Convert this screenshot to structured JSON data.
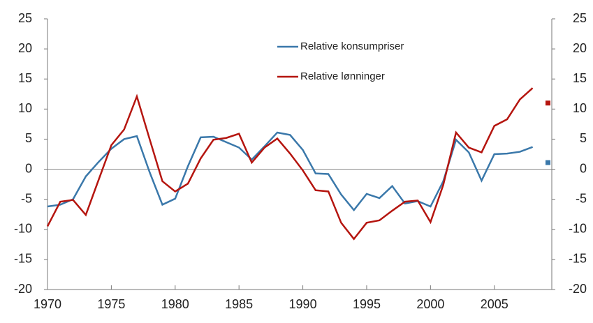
{
  "chart_data": {
    "type": "line",
    "x": [
      1970,
      1971,
      1972,
      1973,
      1974,
      1975,
      1976,
      1977,
      1978,
      1979,
      1980,
      1981,
      1982,
      1983,
      1984,
      1985,
      1986,
      1987,
      1988,
      1989,
      1990,
      1991,
      1992,
      1993,
      1994,
      1995,
      1996,
      1997,
      1998,
      1999,
      2000,
      2001,
      2002,
      2003,
      2004,
      2005,
      2006,
      2007,
      2008
    ],
    "series": [
      {
        "name": "Relative konsumpriser",
        "color": "#3a78aa",
        "values": [
          -6.2,
          -5.9,
          -5.0,
          -1.2,
          1.2,
          3.4,
          5.0,
          5.5,
          -0.5,
          -5.9,
          -4.9,
          0.5,
          5.3,
          5.4,
          4.5,
          3.6,
          1.6,
          3.8,
          6.1,
          5.7,
          3.2,
          -0.7,
          -0.8,
          -4.2,
          -6.8,
          -4.1,
          -4.8,
          -2.8,
          -5.7,
          -5.3,
          -6.2,
          -2.0,
          4.9,
          2.8,
          -1.9,
          2.5,
          2.6,
          2.9,
          3.7
        ],
        "marker": {
          "x": 2009.2,
          "value": 1.1
        }
      },
      {
        "name": "Relative lønninger",
        "color": "#b5150f",
        "values": [
          -9.5,
          -5.4,
          -5.1,
          -7.6,
          -1.8,
          4.0,
          6.6,
          12.1,
          5.0,
          -2.0,
          -3.7,
          -2.4,
          1.8,
          4.9,
          5.2,
          5.9,
          1.1,
          3.6,
          5.1,
          2.6,
          -0.2,
          -3.5,
          -3.7,
          -8.9,
          -11.6,
          -8.9,
          -8.5,
          -6.9,
          -5.4,
          -5.2,
          -8.8,
          -2.6,
          6.1,
          3.6,
          2.8,
          7.2,
          8.3,
          11.6,
          13.5
        ],
        "marker": {
          "x": 2009.2,
          "value": 11.0
        }
      }
    ],
    "xlim": [
      1970,
      2009.5
    ],
    "xticks": [
      1970,
      1975,
      1980,
      1985,
      1990,
      1995,
      2000,
      2005
    ],
    "ylim": [
      -20,
      25
    ],
    "yticks": [
      -20,
      -15,
      -10,
      -5,
      0,
      5,
      10,
      15,
      20,
      25
    ],
    "y2lim": [
      -20,
      25
    ],
    "y2ticks": [
      -20,
      -15,
      -10,
      -5,
      0,
      5,
      10,
      15,
      20,
      25
    ]
  }
}
